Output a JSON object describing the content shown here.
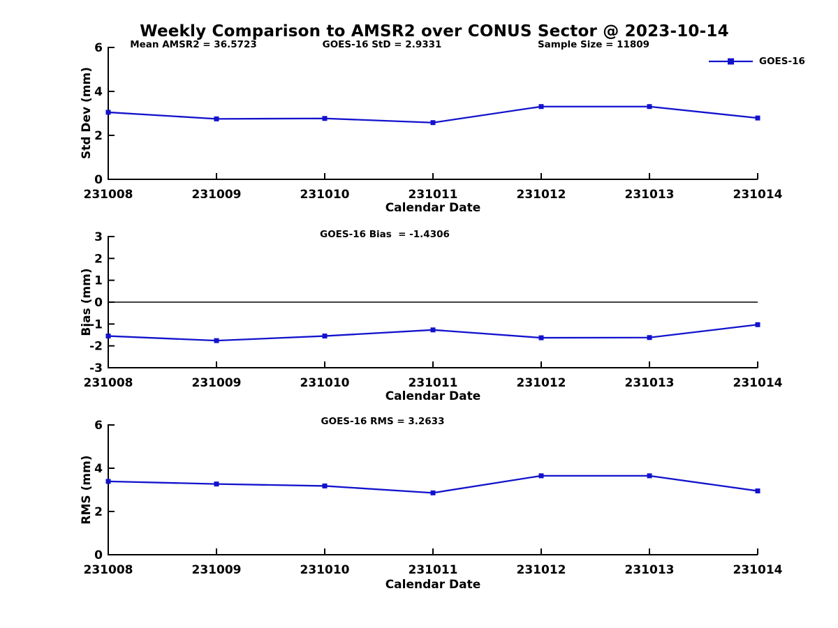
{
  "figure": {
    "title": "Weekly Comparison to AMSR2 over CONUS Sector @ 2023-10-14",
    "series_color": "#1212cd",
    "axis_color": "#000000"
  },
  "legend": {
    "label": "GOES-16"
  },
  "chart_data": [
    {
      "type": "line",
      "title": "Weekly Comparison to AMSR2 over CONUS Sector @ 2023-10-14",
      "annotations": [
        "Mean AMSR2 = 36.5723",
        "GOES-16 StD = 2.9331",
        "Sample Size = 11809"
      ],
      "categories": [
        "231008",
        "231009",
        "231010",
        "231011",
        "231012",
        "231013",
        "231014"
      ],
      "series": [
        {
          "name": "GOES-16",
          "values": [
            3.05,
            2.75,
            2.77,
            2.58,
            3.31,
            3.31,
            2.79
          ]
        }
      ],
      "xlabel": "Calendar Date",
      "ylabel": "Std Dev (mm)",
      "ylim": [
        0,
        6
      ],
      "yticks": [
        0,
        2,
        4,
        6
      ],
      "grid": false,
      "legend_position": "top-right",
      "marker": "square",
      "line_color": "#1212cd"
    },
    {
      "type": "line",
      "annotation": "GOES-16 Bias  = -1.4306",
      "categories": [
        "231008",
        "231009",
        "231010",
        "231011",
        "231012",
        "231013",
        "231014"
      ],
      "series": [
        {
          "name": "GOES-16",
          "values": [
            -1.55,
            -1.76,
            -1.55,
            -1.27,
            -1.63,
            -1.62,
            -1.03
          ]
        }
      ],
      "xlabel": "Calendar Date",
      "ylabel": "Bias (mm)",
      "ylim": [
        -3,
        3
      ],
      "yticks": [
        -3,
        -2,
        -1,
        0,
        1,
        2,
        3
      ],
      "zero_line": true,
      "grid": false,
      "marker": "square",
      "line_color": "#1212cd"
    },
    {
      "type": "line",
      "annotation": "GOES-16 RMS = 3.2633",
      "categories": [
        "231008",
        "231009",
        "231010",
        "231011",
        "231012",
        "231013",
        "231014"
      ],
      "series": [
        {
          "name": "GOES-16",
          "values": [
            3.39,
            3.27,
            3.18,
            2.86,
            3.65,
            3.65,
            2.95
          ]
        }
      ],
      "xlabel": "Calendar Date",
      "ylabel": "RMS (mm)",
      "ylim": [
        0,
        6
      ],
      "yticks": [
        0,
        2,
        4,
        6
      ],
      "grid": false,
      "marker": "square",
      "line_color": "#1212cd"
    }
  ]
}
